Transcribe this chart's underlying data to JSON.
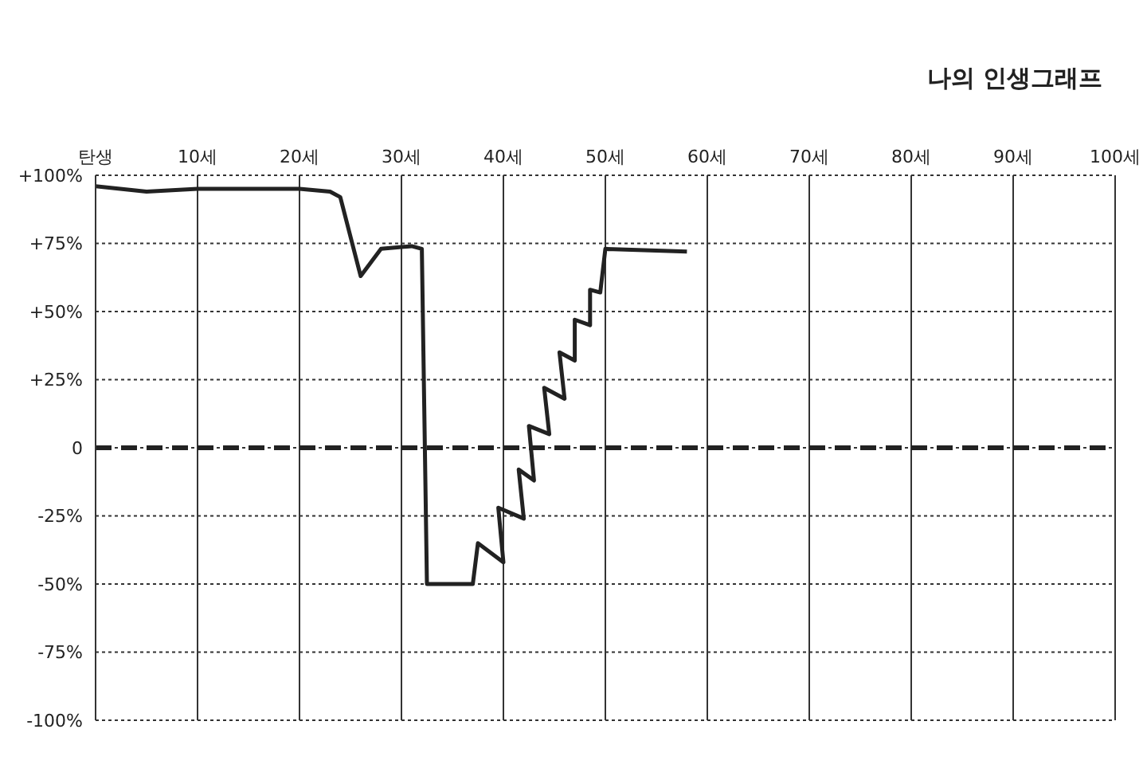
{
  "chart_data": {
    "type": "line",
    "title": "나의 인생그래프",
    "x": [
      0,
      5,
      10,
      20,
      23,
      24,
      26,
      28,
      31,
      32,
      32.5,
      37,
      37.5,
      40,
      39.5,
      42,
      41.5,
      43,
      42.5,
      44.5,
      44,
      46,
      45.5,
      47,
      47,
      48.5,
      48.5,
      49.5,
      50,
      58
    ],
    "series": [
      {
        "color": "#222222",
        "line_style": "solid",
        "values": [
          96,
          94,
          95,
          95,
          94,
          92,
          63,
          73,
          74,
          73,
          -50,
          -50,
          -35,
          -42,
          -22,
          -26,
          -8,
          -12,
          8,
          5,
          22,
          18,
          35,
          32,
          47,
          45,
          58,
          57,
          73,
          72
        ]
      }
    ],
    "xlim": [
      0,
      100
    ],
    "xticks": [
      {
        "value": 0,
        "label": "탄생"
      },
      {
        "value": 10,
        "label": "10세"
      },
      {
        "value": 20,
        "label": "20세"
      },
      {
        "value": 30,
        "label": "30세"
      },
      {
        "value": 40,
        "label": "40세"
      },
      {
        "value": 50,
        "label": "50세"
      },
      {
        "value": 60,
        "label": "60세"
      },
      {
        "value": 70,
        "label": "70세"
      },
      {
        "value": 80,
        "label": "80세"
      },
      {
        "value": 90,
        "label": "90세"
      },
      {
        "value": 100,
        "label": "100세"
      }
    ],
    "ylim": [
      -100,
      100
    ],
    "yticks": [
      {
        "value": -100,
        "label": "-100%"
      },
      {
        "value": -75,
        "label": "-75%"
      },
      {
        "value": -50,
        "label": "-50%"
      },
      {
        "value": -25,
        "label": "-25%"
      },
      {
        "value": 0,
        "label": "0"
      },
      {
        "value": 25,
        "label": "+25%"
      },
      {
        "value": 50,
        "label": "+50%"
      },
      {
        "value": 75,
        "label": "+75%"
      },
      {
        "value": 100,
        "label": "+100%"
      }
    ],
    "ref_lines": [
      {
        "axis": "y",
        "value": 0,
        "color": "#222222",
        "line_style": "dashed"
      }
    ],
    "grid": true,
    "marker": "none"
  }
}
